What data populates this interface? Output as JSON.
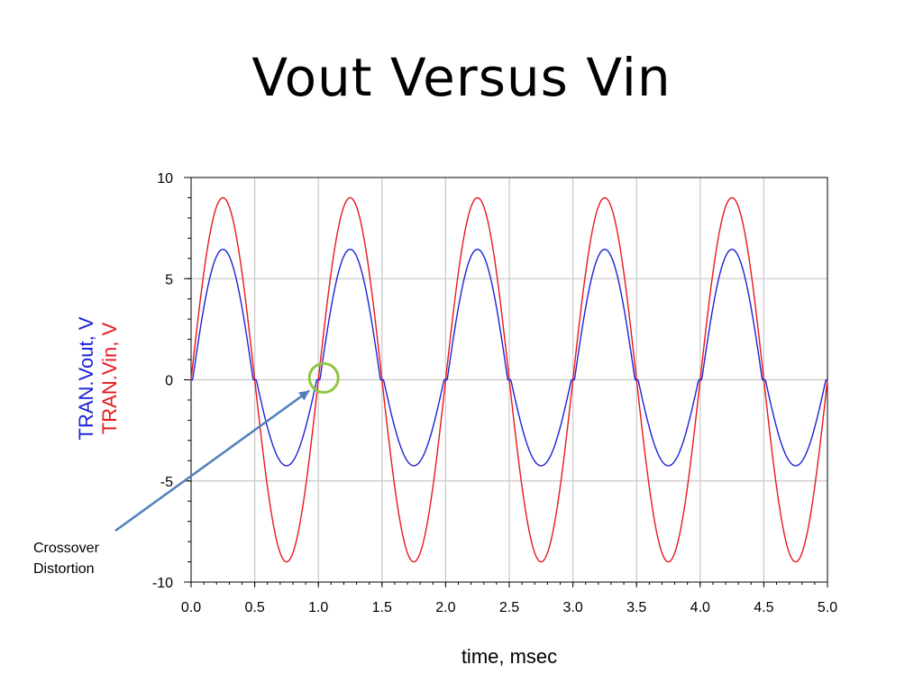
{
  "title": "Vout Versus Vin",
  "chart_data": {
    "type": "line",
    "xlabel": "time, msec",
    "ylabels": [
      "TRAN.Vout, V",
      "TRAN.Vin, V"
    ],
    "xlim": [
      0,
      5
    ],
    "ylim": [
      -10,
      10
    ],
    "xticks": [
      "0.0",
      "0.5",
      "1.0",
      "1.5",
      "2.0",
      "2.5",
      "3.0",
      "3.5",
      "4.0",
      "4.5",
      "5.0"
    ],
    "yticks": [
      "10",
      "5",
      "0",
      "-5",
      "-10"
    ],
    "grid": true,
    "series": [
      {
        "name": "TRAN.Vin, V",
        "color": "#e8191d",
        "function": "sine",
        "amplitude": 9,
        "frequency_per_msec": 1
      },
      {
        "name": "TRAN.Vout, V",
        "color": "#1f22d6",
        "function": "sine_with_crossover_deadband",
        "positive_peak": 6.45,
        "negative_peak": -4.25,
        "frequency_per_msec": 1
      }
    ],
    "annotations": [
      {
        "text_lines": [
          "Crossover",
          "Distortion"
        ],
        "points_to": {
          "x": 1.0,
          "y": 0
        },
        "marker": "circle",
        "marker_color": "#8fc63f",
        "arrow_color": "#4f7fba"
      }
    ]
  }
}
